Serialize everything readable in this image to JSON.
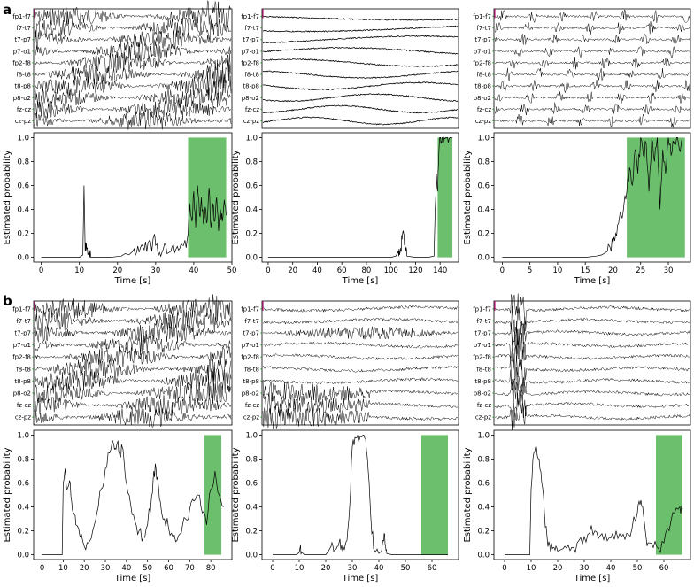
{
  "panels": [
    {
      "letter": "a"
    },
    {
      "letter": "b"
    }
  ],
  "eeg_channels": [
    "fp1-f7",
    "f7-t7",
    "t7-p7",
    "p7-o1",
    "fp2-f8",
    "f8-t8",
    "t8-p8",
    "p8-o2",
    "fz-cz",
    "cz-pz"
  ],
  "colors": {
    "seizure": "#6cbf6c",
    "trace": "#000000",
    "marker": "#c0147a"
  },
  "chart_data": [
    {
      "type": "line",
      "row": "a",
      "col": 0,
      "xlabel": "Time [s]",
      "ylabel": "Estimated probability",
      "xlim": [
        -2,
        50
      ],
      "ylim": [
        -0.04,
        1.04
      ],
      "xticks": [
        0,
        10,
        20,
        30,
        40,
        50
      ],
      "yticks": [
        0.0,
        0.2,
        0.4,
        0.6,
        0.8,
        1.0
      ],
      "seizure_interval": [
        38.5,
        48.5
      ],
      "eeg_style": "dense",
      "series": [
        {
          "x": [
            0,
            10,
            10.9,
            11.2,
            11.5,
            11.8,
            12.2,
            12.6,
            13,
            15,
            18,
            21,
            22,
            23,
            24,
            25,
            26,
            27,
            28,
            29,
            29.5,
            30,
            31,
            32,
            33,
            34,
            35,
            36,
            37,
            38,
            38.5,
            39,
            39.5,
            40,
            40.5,
            41,
            41.5,
            42,
            42.5,
            43,
            43.5,
            44,
            44.5,
            45,
            45.5,
            46,
            46.5,
            47,
            47.5,
            48,
            48.5
          ],
          "y": [
            0,
            0,
            0.02,
            0.6,
            0.05,
            0.12,
            0.02,
            0.05,
            0,
            0,
            0,
            0.01,
            0.03,
            0.02,
            0.05,
            0.04,
            0.08,
            0.06,
            0.12,
            0.05,
            0.17,
            0.1,
            0.04,
            0.07,
            0.03,
            0.05,
            0.04,
            0.06,
            0.1,
            0.08,
            0.2,
            0.45,
            0.3,
            0.55,
            0.25,
            0.6,
            0.35,
            0.5,
            0.28,
            0.42,
            0.3,
            0.58,
            0.25,
            0.45,
            0.3,
            0.5,
            0.22,
            0.4,
            0.3,
            0.48,
            0.35
          ]
        }
      ]
    },
    {
      "type": "line",
      "row": "a",
      "col": 1,
      "xlabel": "Time [s]",
      "ylabel": "Estimated probability",
      "xlim": [
        -5,
        155
      ],
      "ylim": [
        -0.04,
        1.04
      ],
      "xticks": [
        0,
        20,
        40,
        60,
        80,
        100,
        120,
        140
      ],
      "yticks": [
        0.0,
        0.2,
        0.4,
        0.6,
        0.8,
        1.0
      ],
      "seizure_interval": [
        138,
        150
      ],
      "eeg_style": "sparse",
      "series": [
        {
          "x": [
            0,
            40,
            80,
            100,
            104,
            106,
            107,
            108,
            109,
            110,
            111,
            112,
            113,
            120,
            130,
            135,
            136,
            137,
            138,
            139,
            140,
            141,
            142,
            144,
            146,
            148,
            150
          ],
          "y": [
            0,
            0,
            0,
            0,
            0.01,
            0.05,
            0.02,
            0.08,
            0.15,
            0.22,
            0.1,
            0.05,
            0.01,
            0,
            0,
            0.01,
            0.4,
            0.7,
            0.55,
            0.88,
            1.0,
            0.97,
            1.0,
            0.99,
            1.0,
            1.0,
            1.0
          ]
        }
      ]
    },
    {
      "type": "line",
      "row": "a",
      "col": 2,
      "xlabel": "Time [s]",
      "ylabel": "Estimated probability",
      "xlim": [
        -1.5,
        34
      ],
      "ylim": [
        -0.04,
        1.04
      ],
      "xticks": [
        0,
        5,
        10,
        15,
        20,
        25,
        30
      ],
      "yticks": [
        0.0,
        0.2,
        0.4,
        0.6,
        0.8,
        1.0
      ],
      "seizure_interval": [
        22.5,
        33
      ],
      "eeg_style": "bursts",
      "series": [
        {
          "x": [
            0,
            5,
            10,
            15,
            17,
            18,
            19,
            19.5,
            20,
            20.5,
            21,
            21.5,
            22,
            22.5,
            23,
            23.5,
            24,
            24.5,
            25,
            25.5,
            26,
            26.5,
            27,
            27.5,
            28,
            28.5,
            29,
            29.5,
            30,
            30.5,
            31,
            31.5,
            32,
            32.5
          ],
          "y": [
            0,
            0,
            0,
            0,
            0.01,
            0.02,
            0.05,
            0.08,
            0.12,
            0.2,
            0.28,
            0.35,
            0.45,
            0.55,
            0.75,
            0.6,
            0.9,
            0.7,
            1.0,
            0.85,
            0.95,
            0.55,
            0.98,
            0.8,
            1.0,
            0.4,
            0.9,
            0.7,
            1.0,
            0.85,
            0.95,
            1.0,
            0.9,
            1.0
          ]
        }
      ]
    },
    {
      "type": "line",
      "row": "b",
      "col": 0,
      "xlabel": "Time [s]",
      "ylabel": "Estimated probability",
      "xlim": [
        -4,
        90
      ],
      "ylim": [
        -0.04,
        1.04
      ],
      "xticks": [
        0,
        10,
        20,
        30,
        40,
        50,
        60,
        70,
        80
      ],
      "yticks": [
        0.0,
        0.2,
        0.4,
        0.6,
        0.8,
        1.0
      ],
      "seizure_interval": [
        77,
        85
      ],
      "eeg_style": "dense",
      "series": [
        {
          "x": [
            0,
            9.5,
            10,
            11,
            12,
            13,
            14,
            15,
            16,
            18,
            20,
            22,
            24,
            26,
            28,
            30,
            32,
            34,
            35,
            36,
            37,
            38,
            39,
            40,
            42,
            44,
            46,
            48,
            50,
            52,
            53,
            54,
            55,
            56,
            58,
            60,
            62,
            64,
            66,
            68,
            70,
            72,
            74,
            76,
            78,
            80,
            82,
            84,
            86
          ],
          "y": [
            0,
            0,
            0.6,
            0.72,
            0.55,
            0.62,
            0.45,
            0.35,
            0.25,
            0.15,
            0.07,
            0.1,
            0.2,
            0.35,
            0.55,
            0.72,
            0.85,
            0.92,
            0.88,
            0.95,
            0.82,
            0.9,
            0.75,
            0.6,
            0.42,
            0.28,
            0.2,
            0.15,
            0.25,
            0.5,
            0.7,
            0.72,
            0.6,
            0.45,
            0.3,
            0.22,
            0.15,
            0.12,
            0.18,
            0.3,
            0.38,
            0.45,
            0.5,
            0.35,
            0.25,
            0.55,
            0.7,
            0.5,
            0.4
          ]
        }
      ]
    },
    {
      "type": "line",
      "row": "b",
      "col": 1,
      "xlabel": "Time [s]",
      "ylabel": "Estimated probability",
      "xlim": [
        -4,
        70
      ],
      "ylim": [
        -0.04,
        1.04
      ],
      "xticks": [
        0,
        10,
        20,
        30,
        40,
        50,
        60
      ],
      "yticks": [
        0.0,
        0.2,
        0.4,
        0.6,
        0.8,
        1.0
      ],
      "seizure_interval": [
        56,
        66
      ],
      "eeg_style": "artifact",
      "series": [
        {
          "x": [
            0,
            9,
            10,
            10.5,
            11,
            12,
            20,
            21,
            22,
            23,
            24,
            25,
            26,
            27,
            28,
            29,
            30,
            31,
            32,
            33,
            34,
            35,
            36,
            37,
            38,
            40,
            41,
            41.5,
            42,
            42.5,
            43,
            45,
            66
          ],
          "y": [
            0,
            0,
            0.02,
            0.08,
            0.02,
            0,
            0,
            0.03,
            0.07,
            0.03,
            0.05,
            0.1,
            0.08,
            0.04,
            0.12,
            0.4,
            0.9,
            0.98,
            1.0,
            0.99,
            1.0,
            0.97,
            0.7,
            0.3,
            0.05,
            0.01,
            0.03,
            0.12,
            0.18,
            0.08,
            0.01,
            0,
            0
          ]
        }
      ]
    },
    {
      "type": "line",
      "row": "b",
      "col": 2,
      "xlabel": "Time [s]",
      "ylabel": "Estimated probability",
      "xlim": [
        -4,
        70
      ],
      "ylim": [
        -0.04,
        1.04
      ],
      "xticks": [
        0,
        10,
        20,
        30,
        40,
        50,
        60
      ],
      "yticks": [
        0.0,
        0.2,
        0.4,
        0.6,
        0.8,
        1.0
      ],
      "seizure_interval": [
        57,
        67
      ],
      "eeg_style": "early_burst",
      "series": [
        {
          "x": [
            0,
            9.5,
            10,
            11,
            12,
            13,
            14,
            15,
            16,
            17,
            18,
            19,
            20,
            22,
            24,
            26,
            28,
            30,
            32,
            34,
            36,
            38,
            40,
            42,
            44,
            46,
            48,
            50,
            51,
            52,
            53,
            54,
            56,
            58,
            60,
            62,
            64,
            66,
            67
          ],
          "y": [
            0,
            0,
            0.55,
            0.85,
            0.9,
            0.8,
            0.6,
            0.35,
            0.15,
            0.08,
            0.05,
            0.04,
            0.03,
            0.05,
            0.08,
            0.06,
            0.12,
            0.15,
            0.18,
            0.2,
            0.16,
            0.18,
            0.14,
            0.2,
            0.15,
            0.18,
            0.22,
            0.35,
            0.42,
            0.4,
            0.2,
            0.1,
            0.06,
            0.05,
            0.1,
            0.2,
            0.35,
            0.4,
            0.38
          ]
        }
      ]
    }
  ]
}
